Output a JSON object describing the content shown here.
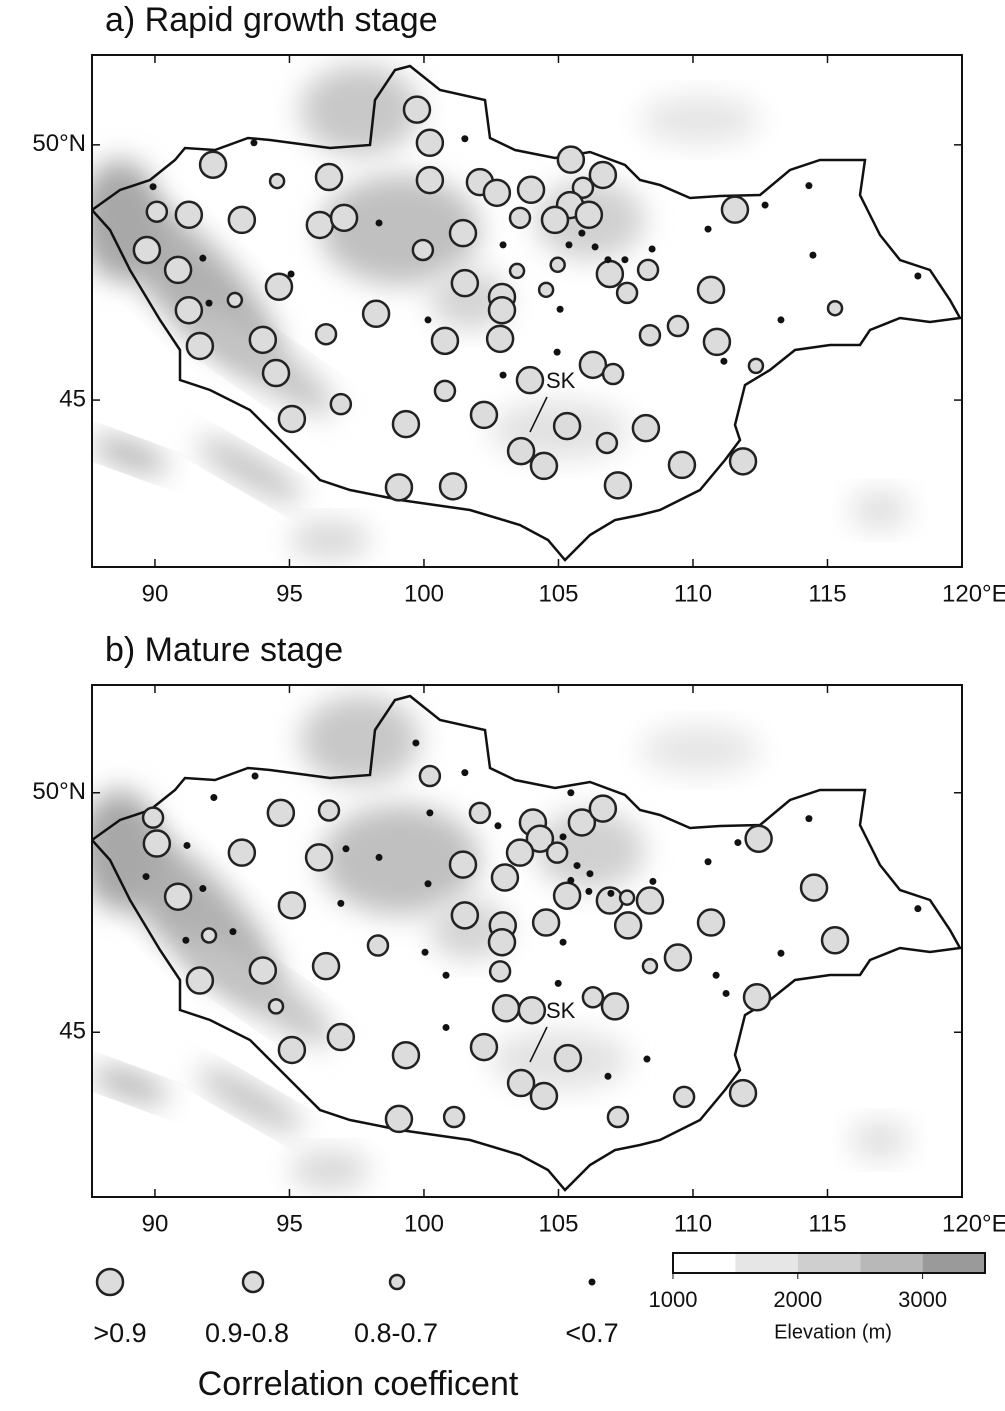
{
  "chart_data": [
    {
      "type": "map",
      "title": "a) Rapid growth stage",
      "xlim": [
        87.66,
        120
      ],
      "ylim": [
        41.73,
        51.76
      ],
      "xticks": [
        90,
        95,
        100,
        105,
        110,
        115,
        {
          "value": 120,
          "label": "120°E"
        }
      ],
      "yticks": [
        45,
        {
          "value": 50,
          "label": "50°N"
        }
      ],
      "annotations": [
        "SK"
      ],
      "stations": [
        [
          99.74,
          50.69,
          0
        ],
        [
          100.22,
          50.04,
          0
        ],
        [
          92.16,
          49.61,
          0
        ],
        [
          96.47,
          49.37,
          0
        ],
        [
          100.22,
          49.31,
          0
        ],
        [
          102.08,
          49.27,
          0
        ],
        [
          102.71,
          49.06,
          0
        ],
        [
          103.98,
          49.12,
          0
        ],
        [
          105.46,
          49.71,
          0
        ],
        [
          106.65,
          49.41,
          0
        ],
        [
          105.91,
          49.16,
          1
        ],
        [
          105.43,
          48.82,
          0
        ],
        [
          106.13,
          48.63,
          0
        ],
        [
          104.87,
          48.53,
          0
        ],
        [
          103.57,
          48.57,
          1
        ],
        [
          111.56,
          48.73,
          0
        ],
        [
          90.07,
          48.69,
          1
        ],
        [
          91.26,
          48.63,
          0
        ],
        [
          93.23,
          48.53,
          0
        ],
        [
          96.13,
          48.43,
          0
        ],
        [
          97.03,
          48.57,
          0
        ],
        [
          89.7,
          47.94,
          0
        ],
        [
          90.86,
          47.55,
          0
        ],
        [
          94.61,
          47.22,
          0
        ],
        [
          99.96,
          47.94,
          1
        ],
        [
          101.45,
          48.27,
          0
        ],
        [
          103.46,
          47.53,
          2
        ],
        [
          104.97,
          47.65,
          2
        ],
        [
          106.91,
          47.47,
          0
        ],
        [
          108.33,
          47.55,
          1
        ],
        [
          107.55,
          47.1,
          1
        ],
        [
          101.52,
          47.29,
          0
        ],
        [
          102.9,
          47.02,
          0
        ],
        [
          102.9,
          46.76,
          0
        ],
        [
          104.54,
          47.16,
          2
        ],
        [
          110.67,
          47.16,
          0
        ],
        [
          91.26,
          46.76,
          0
        ],
        [
          92.97,
          46.96,
          2
        ],
        [
          98.22,
          46.69,
          0
        ],
        [
          94.01,
          46.18,
          0
        ],
        [
          96.36,
          46.29,
          1
        ],
        [
          91.67,
          46.06,
          0
        ],
        [
          100.78,
          46.16,
          0
        ],
        [
          102.83,
          46.2,
          0
        ],
        [
          108.4,
          46.27,
          1
        ],
        [
          109.44,
          46.45,
          1
        ],
        [
          110.89,
          46.14,
          0
        ],
        [
          115.28,
          46.8,
          2
        ],
        [
          112.34,
          45.67,
          2
        ],
        [
          94.5,
          45.53,
          0
        ],
        [
          96.91,
          44.92,
          1
        ],
        [
          95.09,
          44.63,
          0
        ],
        [
          100.78,
          45.18,
          1
        ],
        [
          102.23,
          44.71,
          0
        ],
        [
          99.33,
          44.53,
          0
        ],
        [
          103.94,
          45.39,
          0
        ],
        [
          106.28,
          45.69,
          0
        ],
        [
          107.03,
          45.51,
          1
        ],
        [
          105.32,
          44.49,
          0
        ],
        [
          108.25,
          44.45,
          0
        ],
        [
          106.8,
          44.16,
          1
        ],
        [
          103.61,
          44.0,
          0
        ],
        [
          104.46,
          43.71,
          0
        ],
        [
          107.21,
          43.33,
          0
        ],
        [
          109.59,
          43.73,
          0
        ],
        [
          111.86,
          43.8,
          0
        ],
        [
          99.07,
          43.29,
          0
        ],
        [
          101.08,
          43.31,
          0
        ],
        [
          94.54,
          49.29,
          2
        ],
        [
          93.68,
          50.04,
          3
        ],
        [
          89.93,
          49.18,
          3
        ],
        [
          101.52,
          50.12,
          3
        ],
        [
          98.33,
          48.47,
          3
        ],
        [
          91.78,
          47.78,
          3
        ],
        [
          95.06,
          47.47,
          3
        ],
        [
          92.01,
          46.9,
          3
        ],
        [
          100.15,
          46.57,
          3
        ],
        [
          102.94,
          48.04,
          3
        ],
        [
          105.39,
          48.04,
          3
        ],
        [
          105.87,
          48.27,
          3
        ],
        [
          106.36,
          48.0,
          3
        ],
        [
          106.84,
          47.75,
          3
        ],
        [
          107.47,
          47.75,
          3
        ],
        [
          108.48,
          47.96,
          3
        ],
        [
          105.06,
          46.78,
          3
        ],
        [
          104.95,
          45.94,
          3
        ],
        [
          102.94,
          45.49,
          3
        ],
        [
          110.56,
          48.35,
          3
        ],
        [
          112.68,
          48.82,
          3
        ],
        [
          114.31,
          49.2,
          3
        ],
        [
          114.46,
          47.84,
          3
        ],
        [
          113.27,
          46.57,
          3
        ],
        [
          111.15,
          45.76,
          3
        ],
        [
          118.36,
          47.43,
          3
        ]
      ]
    },
    {
      "type": "map",
      "title": "b) Mature stage",
      "xlim": [
        87.66,
        120
      ],
      "ylim": [
        41.56,
        52.25
      ],
      "xticks": [
        90,
        95,
        100,
        105,
        110,
        115,
        {
          "value": 120,
          "label": "120°E"
        }
      ],
      "yticks": [
        45,
        {
          "value": 50,
          "label": "50°N"
        }
      ],
      "annotations": [
        "SK"
      ],
      "stations": [
        [
          100.22,
          50.35,
          1
        ],
        [
          89.93,
          49.48,
          1
        ],
        [
          90.07,
          48.94,
          0
        ],
        [
          94.68,
          49.58,
          0
        ],
        [
          96.47,
          49.63,
          1
        ],
        [
          102.08,
          49.58,
          1
        ],
        [
          104.05,
          49.38,
          0
        ],
        [
          104.31,
          49.04,
          0
        ],
        [
          105.87,
          49.38,
          0
        ],
        [
          106.65,
          49.67,
          0
        ],
        [
          103.57,
          48.75,
          0
        ],
        [
          104.95,
          48.75,
          1
        ],
        [
          93.23,
          48.75,
          0
        ],
        [
          96.1,
          48.65,
          0
        ],
        [
          101.45,
          48.5,
          0
        ],
        [
          103.01,
          48.23,
          0
        ],
        [
          112.44,
          49.04,
          0
        ],
        [
          90.86,
          47.83,
          0
        ],
        [
          95.09,
          47.65,
          0
        ],
        [
          105.32,
          47.85,
          0
        ],
        [
          106.91,
          47.75,
          0
        ],
        [
          107.55,
          47.81,
          2
        ],
        [
          108.4,
          47.75,
          0
        ],
        [
          114.5,
          48.02,
          0
        ],
        [
          101.52,
          47.44,
          0
        ],
        [
          102.93,
          47.23,
          0
        ],
        [
          102.9,
          46.88,
          0
        ],
        [
          104.54,
          47.29,
          0
        ],
        [
          107.59,
          47.23,
          0
        ],
        [
          110.67,
          47.29,
          0
        ],
        [
          115.28,
          46.92,
          0
        ],
        [
          92.01,
          47.02,
          2
        ],
        [
          98.29,
          46.81,
          1
        ],
        [
          94.01,
          46.29,
          0
        ],
        [
          96.36,
          46.38,
          0
        ],
        [
          91.67,
          46.08,
          0
        ],
        [
          102.83,
          46.27,
          1
        ],
        [
          108.4,
          46.38,
          2
        ],
        [
          109.44,
          46.56,
          0
        ],
        [
          94.5,
          45.54,
          2
        ],
        [
          112.38,
          45.73,
          0
        ],
        [
          103.05,
          45.5,
          0
        ],
        [
          104.01,
          45.46,
          0
        ],
        [
          106.28,
          45.73,
          1
        ],
        [
          107.1,
          45.54,
          0
        ],
        [
          96.91,
          44.9,
          0
        ],
        [
          95.09,
          44.63,
          0
        ],
        [
          102.23,
          44.69,
          0
        ],
        [
          99.33,
          44.52,
          0
        ],
        [
          105.35,
          44.46,
          0
        ],
        [
          103.61,
          43.94,
          0
        ],
        [
          104.46,
          43.67,
          0
        ],
        [
          109.67,
          43.65,
          1
        ],
        [
          111.86,
          43.73,
          0
        ],
        [
          99.07,
          43.19,
          0
        ],
        [
          101.12,
          43.23,
          1
        ],
        [
          107.21,
          43.23,
          1
        ],
        [
          93.72,
          50.35,
          3
        ],
        [
          99.7,
          51.04,
          3
        ],
        [
          101.52,
          50.42,
          3
        ],
        [
          92.19,
          49.9,
          3
        ],
        [
          100.22,
          49.58,
          3
        ],
        [
          102.75,
          49.31,
          3
        ],
        [
          91.19,
          48.9,
          3
        ],
        [
          98.33,
          48.65,
          3
        ],
        [
          97.1,
          48.83,
          3
        ],
        [
          89.67,
          48.25,
          3
        ],
        [
          91.78,
          48.0,
          3
        ],
        [
          92.9,
          47.1,
          3
        ],
        [
          96.91,
          47.69,
          3
        ],
        [
          100.15,
          48.1,
          3
        ],
        [
          100.04,
          46.67,
          3
        ],
        [
          100.82,
          46.19,
          3
        ],
        [
          100.82,
          45.1,
          3
        ],
        [
          105.46,
          50.0,
          3
        ],
        [
          105.17,
          49.08,
          3
        ],
        [
          105.69,
          48.48,
          3
        ],
        [
          106.17,
          48.31,
          3
        ],
        [
          105.46,
          48.17,
          3
        ],
        [
          106.13,
          47.94,
          3
        ],
        [
          106.95,
          47.9,
          3
        ],
        [
          108.51,
          48.15,
          3
        ],
        [
          105.17,
          46.88,
          3
        ],
        [
          104.99,
          46.02,
          3
        ],
        [
          111.67,
          48.96,
          3
        ],
        [
          110.56,
          48.56,
          3
        ],
        [
          114.31,
          49.46,
          3
        ],
        [
          113.27,
          46.65,
          3
        ],
        [
          110.86,
          46.19,
          3
        ],
        [
          111.23,
          45.81,
          3
        ],
        [
          106.84,
          44.08,
          3
        ],
        [
          108.29,
          44.44,
          3
        ],
        [
          118.36,
          47.58,
          3
        ],
        [
          91.15,
          46.92,
          3
        ]
      ]
    }
  ],
  "legend": {
    "title": "Correlation coefficent",
    "classes": [
      ">0.9",
      "0.9-0.8",
      "0.8-0.7",
      "<0.7"
    ]
  },
  "colorbar": {
    "title": "Elevation (m)",
    "bins": [
      1000,
      1500,
      2000,
      2500,
      3000,
      3500
    ],
    "colors": [
      "#ffffff",
      "#e6e6e6",
      "#cfcfcf",
      "#b8b8b8",
      "#9a9a9a"
    ],
    "ticks": [
      1000,
      2000,
      3000
    ]
  }
}
